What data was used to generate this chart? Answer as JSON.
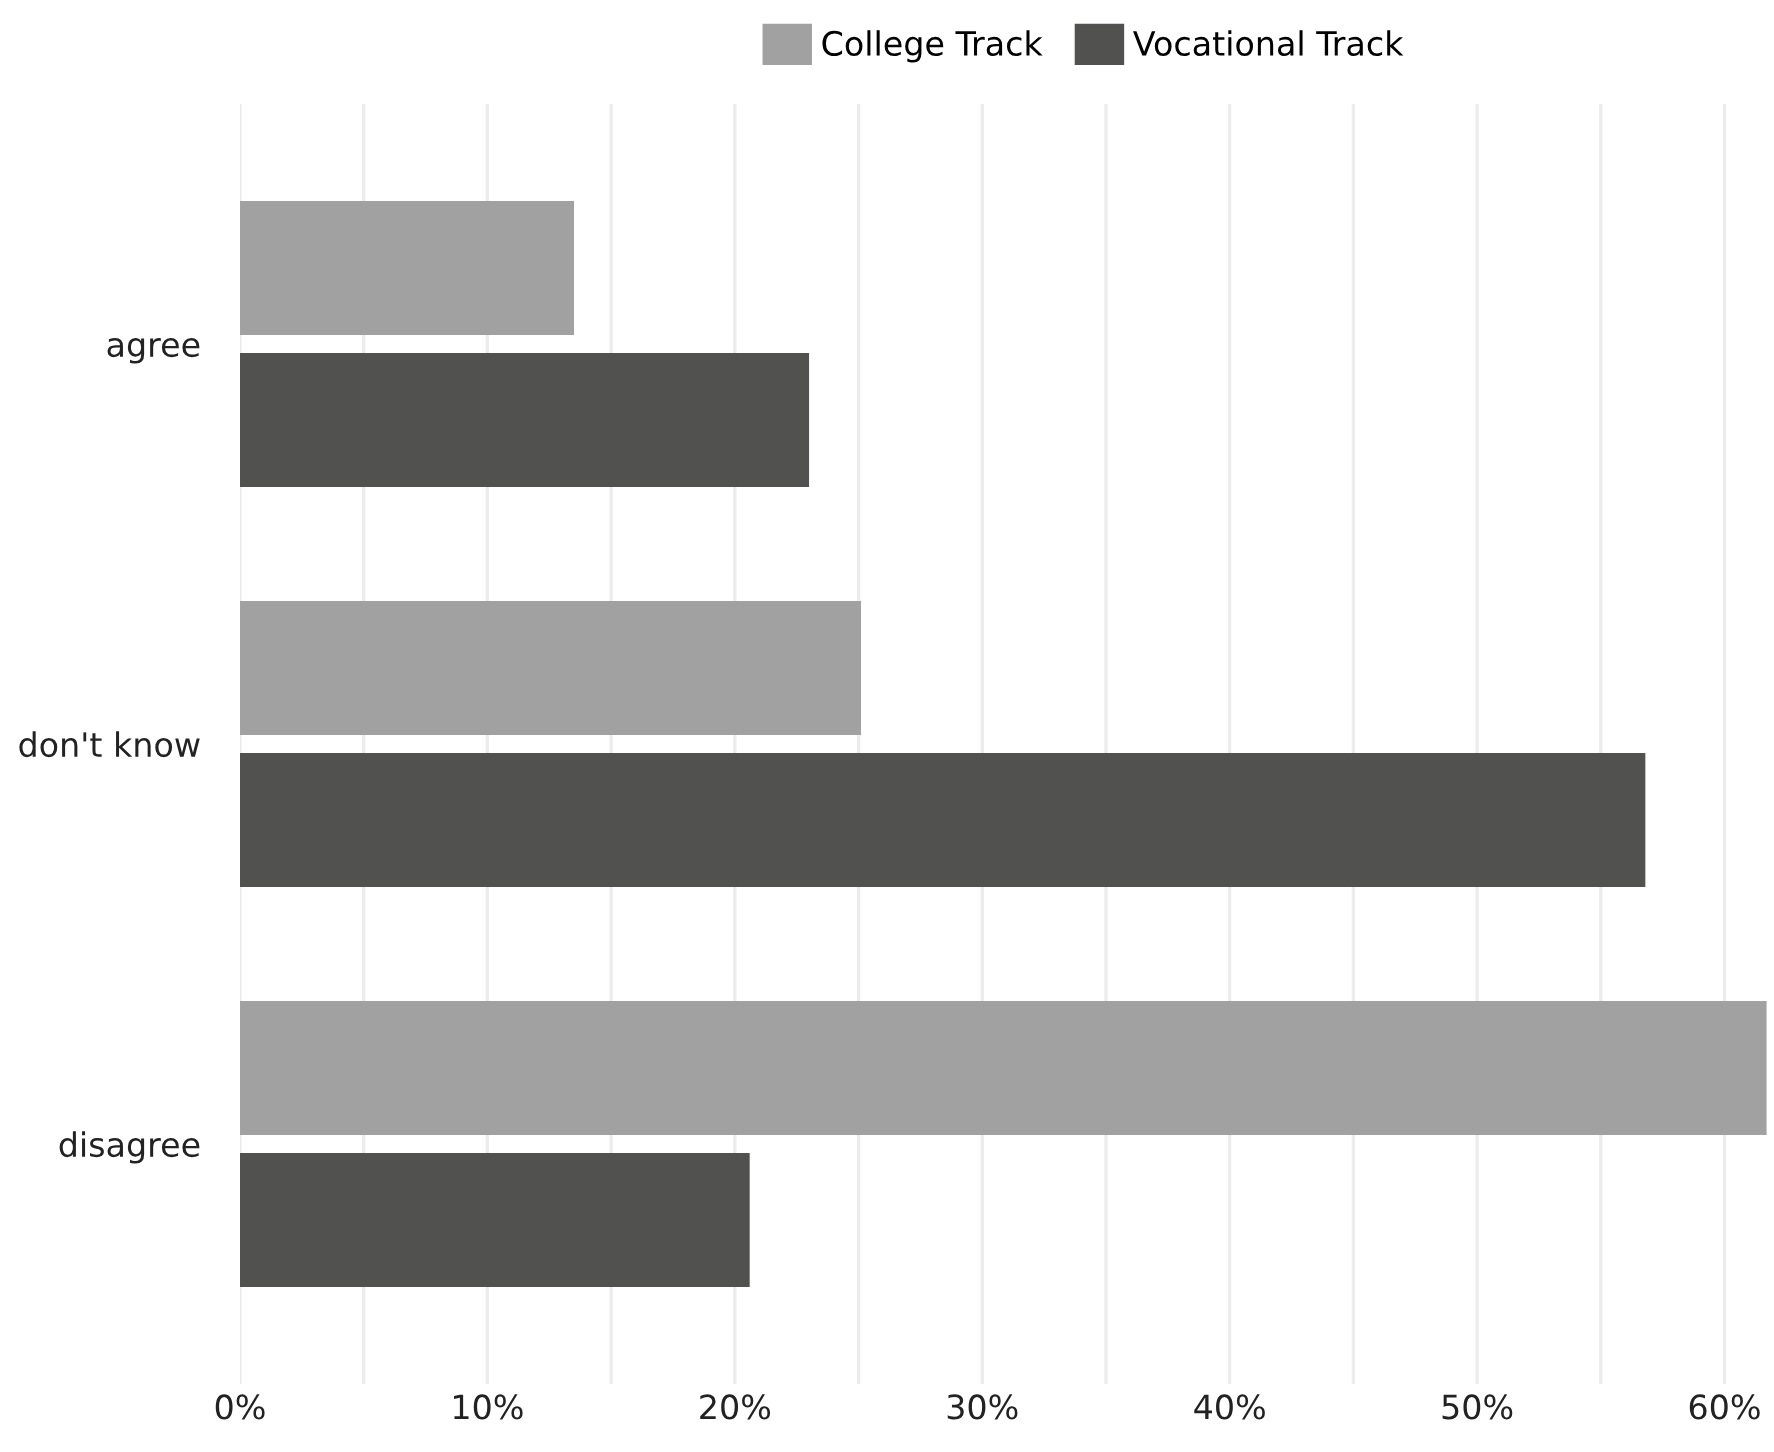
{
  "chart_data": {
    "type": "bar",
    "orientation": "horizontal",
    "categories": [
      "agree",
      "don't know",
      "disagree"
    ],
    "series": [
      {
        "name": "College Track",
        "color": "#a0a1a0",
        "values": [
          13.5,
          25.1,
          61.7
        ]
      },
      {
        "name": "Vocational Track",
        "color": "#51514f",
        "values": [
          23.0,
          56.8,
          20.6
        ]
      }
    ],
    "xlim": [
      0,
      62
    ],
    "xticks": [
      {
        "value": 0,
        "label": "0%"
      },
      {
        "value": 5,
        "label": null
      },
      {
        "value": 10,
        "label": "10%"
      },
      {
        "value": 15,
        "label": null
      },
      {
        "value": 20,
        "label": "20%"
      },
      {
        "value": 25,
        "label": null
      },
      {
        "value": 30,
        "label": "30%"
      },
      {
        "value": 35,
        "label": null
      },
      {
        "value": 40,
        "label": "40%"
      },
      {
        "value": 45,
        "label": null
      },
      {
        "value": 50,
        "label": "50%"
      },
      {
        "value": 55,
        "label": null
      },
      {
        "value": 60,
        "label": "60%"
      }
    ],
    "grid": "x",
    "legend": "top"
  }
}
